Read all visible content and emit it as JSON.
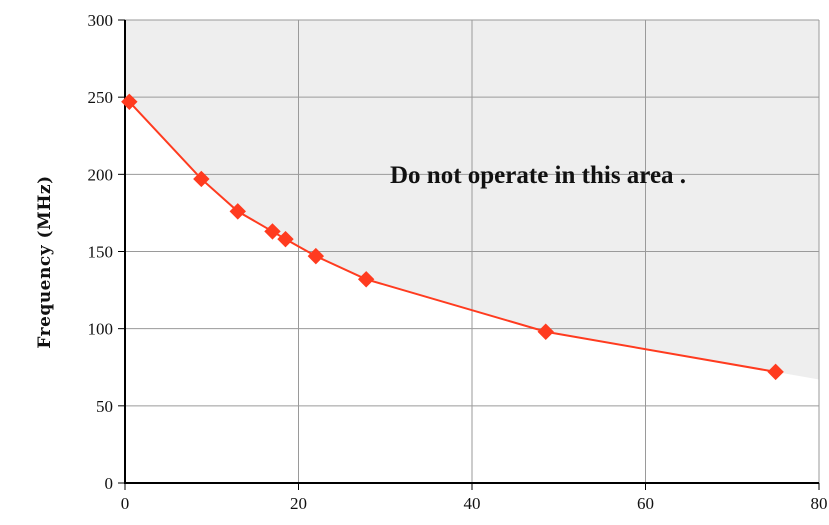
{
  "chart_data": {
    "type": "line",
    "title": "",
    "xlabel": "",
    "ylabel": "Frequency (MHz)",
    "xlim": [
      0,
      80
    ],
    "ylim": [
      0,
      300
    ],
    "x_ticks": [
      0,
      20,
      40,
      60,
      80
    ],
    "y_ticks": [
      0,
      50,
      100,
      150,
      200,
      250,
      300
    ],
    "grid": true,
    "legend": "none",
    "annotation": "Do not operate in this area .",
    "colors": {
      "series": "#ff3b1f",
      "shade": "#eeeeee",
      "grid": "#9a9a9a"
    },
    "shaded_region": "above curve",
    "series": [
      {
        "marker": "diamond",
        "x": [
          0.5,
          8.8,
          13.0,
          17.0,
          18.5,
          22.0,
          27.8,
          48.5,
          75.0
        ],
        "y": [
          247,
          197,
          176,
          163,
          158,
          147,
          132,
          98,
          72
        ]
      }
    ]
  }
}
